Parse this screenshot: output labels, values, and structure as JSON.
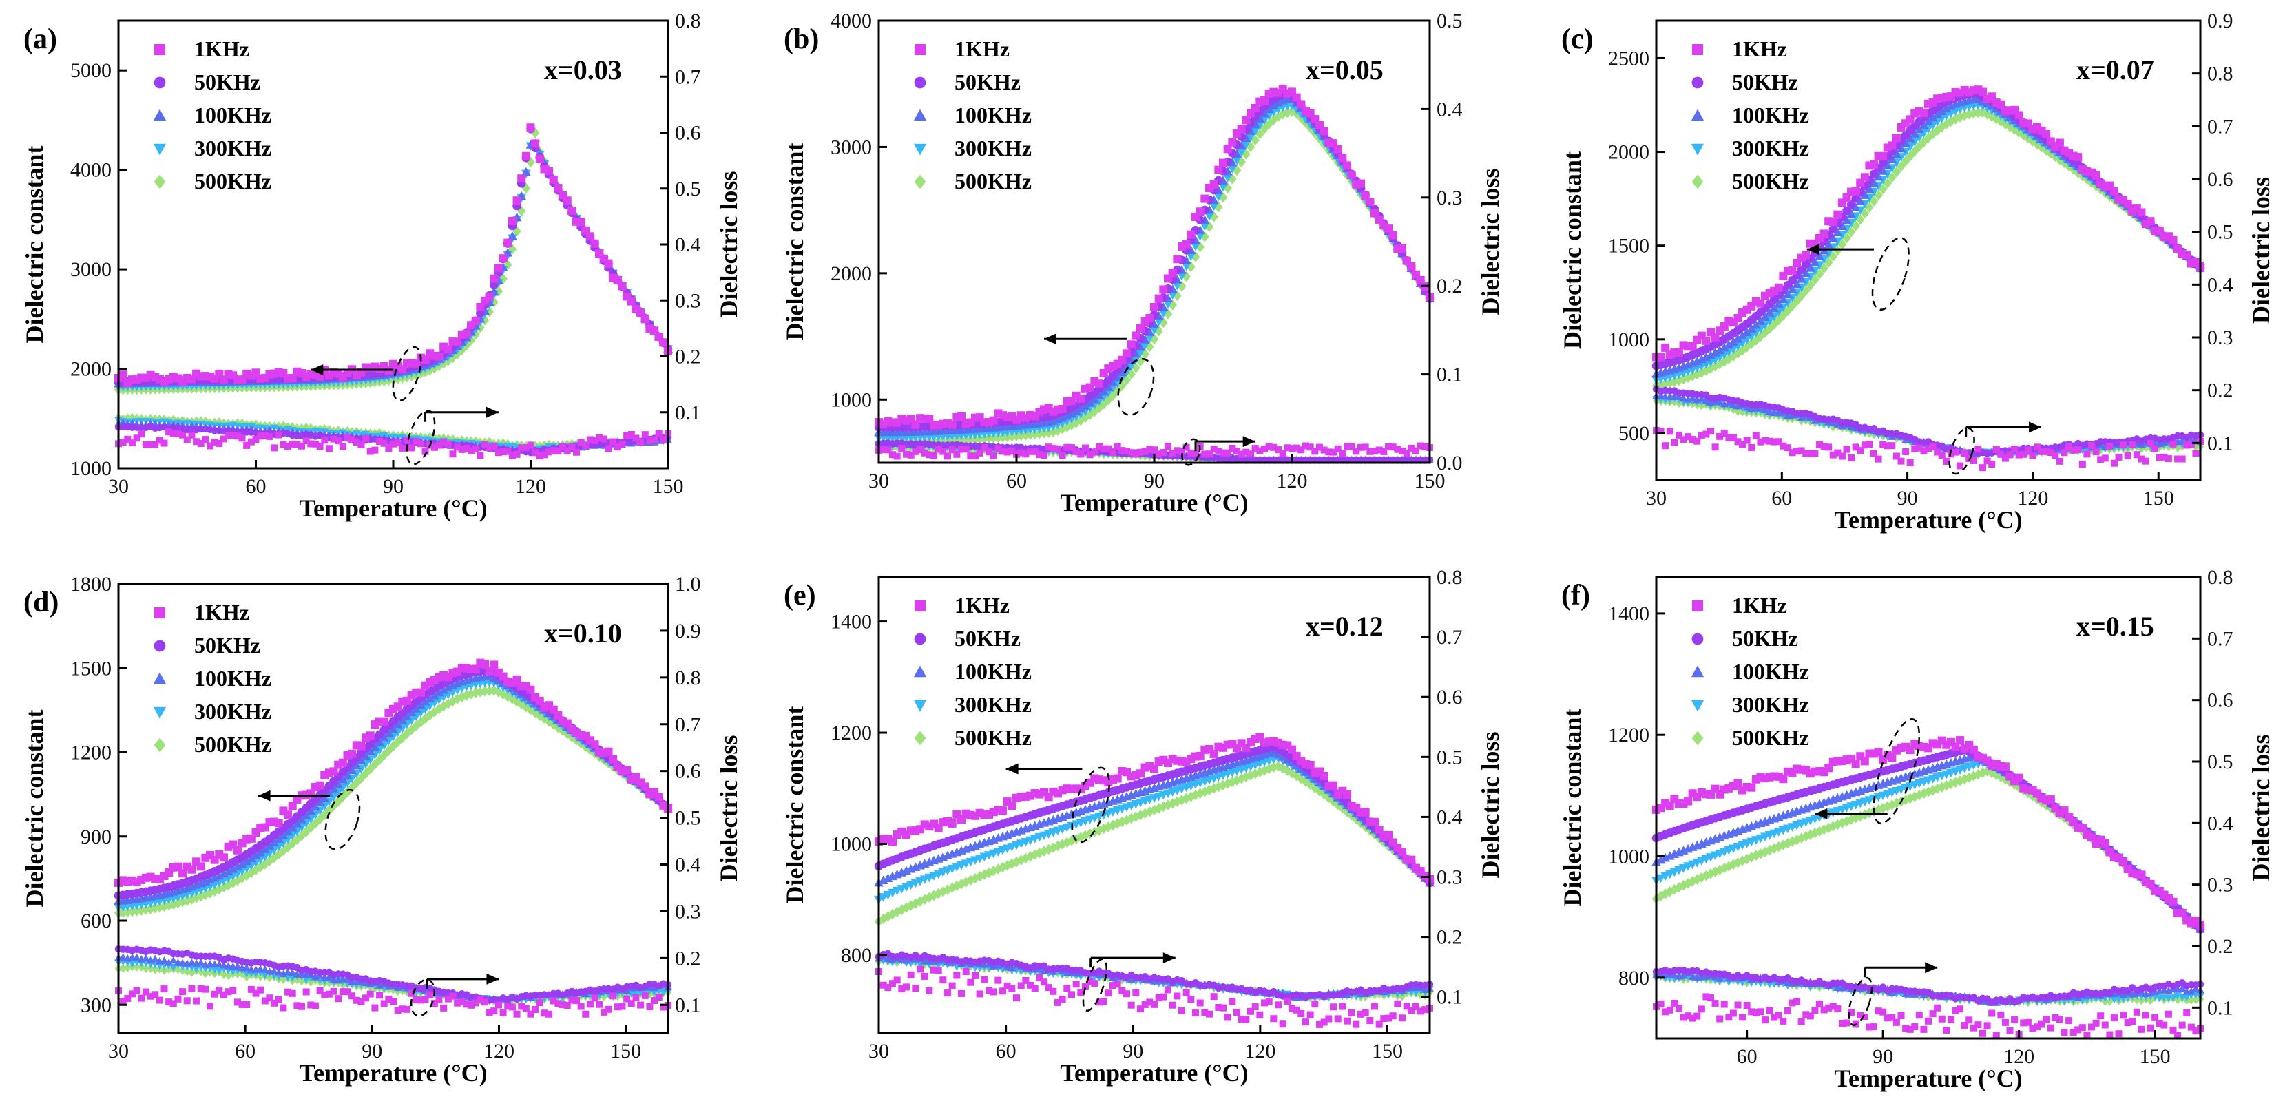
{
  "figure": {
    "x_axis_title": "Temperature (°C)",
    "left_axis_title": "Dielectric constant",
    "right_axis_title": "Dielectric loss",
    "legend": [
      {
        "name": "1KHz",
        "marker": "square",
        "color": "#dc3ff0"
      },
      {
        "name": "50KHz",
        "marker": "circle",
        "color": "#9a3cf0"
      },
      {
        "name": "100KHz",
        "marker": "triangle-up",
        "color": "#5a6ef0"
      },
      {
        "name": "300KHz",
        "marker": "triangle-down",
        "color": "#35b8f5"
      },
      {
        "name": "500KHz",
        "marker": "diamond",
        "color": "#9ee07a"
      }
    ]
  },
  "chart_data": [
    {
      "id": "a",
      "panel_label": "(a)",
      "annotation": "x=0.03",
      "type": "scatter",
      "xlabel": "Temperature (°C)",
      "ylabel": "Dielectric constant",
      "y2label": "Dielectric loss",
      "xlim": [
        30,
        150
      ],
      "xticks": [
        30,
        60,
        90,
        120,
        150
      ],
      "ylim": [
        1000,
        5500
      ],
      "yticks": [
        1000,
        2000,
        3000,
        4000,
        5000
      ],
      "y2lim": [
        0,
        0.8
      ],
      "y2ticks": [
        0.1,
        0.2,
        0.3,
        0.4,
        0.5,
        0.6,
        0.7,
        0.8
      ],
      "y2ticklabels": [
        "0.1",
        "0.2",
        "0.3",
        "0.4",
        "0.5",
        "0.6",
        "0.7",
        "0.8"
      ],
      "constant": {
        "peak_T": [
          120,
          120,
          120.5,
          120.5,
          121
        ],
        "peak_value": [
          4350,
          4340,
          4330,
          4320,
          4300
        ],
        "base_value": [
          1900,
          1870,
          1850,
          1820,
          1790
        ],
        "rise": [
          0.0015,
          0.0015,
          0.0015,
          0.0014,
          0.0014
        ],
        "width_left": 8,
        "width_right": 14,
        "shape": "sharp",
        "end_value": 2200
      },
      "loss": {
        "start": [
          0.055,
          0.075,
          0.08,
          0.085,
          0.09
        ],
        "min_T": [
          120,
          120,
          120,
          120,
          120
        ],
        "min_value": [
          0.03,
          0.03,
          0.03,
          0.035,
          0.04
        ],
        "end": [
          0.06,
          0.055,
          0.05,
          0.05,
          0.05
        ],
        "noise": 0.012
      },
      "guide_arrows": [
        {
          "axis": "left",
          "x_from": 90,
          "x_to": 72,
          "y": 1990
        },
        {
          "axis": "right",
          "x_from": 97,
          "x_to": 113,
          "y2": 0.1
        }
      ],
      "ellipses": [
        {
          "axis": "left",
          "x": 93,
          "y": 1950,
          "rx_t": 2.5,
          "ry": 280
        },
        {
          "axis": "right",
          "x": 96,
          "y2": 0.055,
          "rx_t": 2.5,
          "ry2": 0.05
        }
      ]
    },
    {
      "id": "b",
      "panel_label": "(b)",
      "annotation": "x=0.05",
      "type": "scatter",
      "xlabel": "Temperature (°C)",
      "ylabel": "Dielectric constant",
      "y2label": "Dielectric loss",
      "xlim": [
        30,
        150
      ],
      "xticks": [
        30,
        60,
        90,
        120,
        150
      ],
      "ylim": [
        500,
        4000
      ],
      "yticks": [
        1000,
        2000,
        3000,
        4000
      ],
      "y2lim": [
        0,
        0.5
      ],
      "y2ticks": [
        0.0,
        0.1,
        0.2,
        0.3,
        0.4,
        0.5
      ],
      "y2ticklabels": [
        "0.0",
        "0.1",
        "0.2",
        "0.3",
        "0.4",
        "0.5"
      ],
      "constant": {
        "peak_T": [
          119,
          119.5,
          120,
          120,
          120.5
        ],
        "peak_value": [
          3450,
          3420,
          3380,
          3330,
          3280
        ],
        "base_value": [
          820,
          780,
          740,
          700,
          660
        ],
        "rise": [
          0.012,
          0.011,
          0.011,
          0.01,
          0.01
        ],
        "width_left": 20,
        "width_right": 25,
        "shape": "broad",
        "end_value": 1800
      },
      "loss": {
        "start": [
          0.012,
          0.022,
          0.022,
          0.02,
          0.018
        ],
        "min_T": [
          120,
          122,
          122,
          122,
          122
        ],
        "min_value": [
          0.015,
          0.0,
          0.0,
          0.0,
          0.0
        ],
        "end": [
          0.015,
          0.0,
          0.0,
          0.0,
          0.0
        ],
        "noise": 0.005
      },
      "guide_arrows": [
        {
          "axis": "left",
          "x_from": 84,
          "x_to": 66,
          "y": 1480
        },
        {
          "axis": "right",
          "x_from": 99,
          "x_to": 112,
          "y2": 0.024
        }
      ],
      "ellipses": [
        {
          "axis": "left",
          "x": 86,
          "y": 1100,
          "rx_t": 3.5,
          "ry": 230
        },
        {
          "axis": "right",
          "x": 98,
          "y2": 0.012,
          "rx_t": 1.8,
          "ry2": 0.015
        }
      ]
    },
    {
      "id": "c",
      "panel_label": "(c)",
      "annotation": "x=0.07",
      "type": "scatter",
      "xlabel": "Temperature (°C)",
      "ylabel": "Dielectric constant",
      "y2label": "Dielectric loss",
      "xlim": [
        30,
        160
      ],
      "xticks": [
        30,
        60,
        90,
        120,
        150
      ],
      "ylim": [
        250,
        2700
      ],
      "yticks": [
        500,
        1000,
        1500,
        2000,
        2500
      ],
      "y2lim": [
        0.03,
        0.9
      ],
      "y2ticks": [
        0.1,
        0.2,
        0.3,
        0.4,
        0.5,
        0.6,
        0.7,
        0.8,
        0.9
      ],
      "y2ticklabels": [
        "0.1",
        "0.2",
        "0.3",
        "0.4",
        "0.5",
        "0.6",
        "0.7",
        "0.8",
        "0.9"
      ],
      "constant": {
        "peak_T": [
          106,
          106.5,
          107,
          107.5,
          108
        ],
        "peak_value": [
          2340,
          2310,
          2280,
          2250,
          2210
        ],
        "base_value": [
          860,
          800,
          760,
          730,
          700
        ],
        "rise": [
          0.006,
          0.006,
          0.006,
          0.006,
          0.006
        ],
        "width_left": 30,
        "width_right": 50,
        "shape": "broad",
        "end_value": 1380
      },
      "loss": {
        "start": [
          0.11,
          0.2,
          0.19,
          0.185,
          0.18
        ],
        "min_T": [
          105,
          105,
          105,
          105,
          105
        ],
        "min_value": [
          0.07,
          0.08,
          0.08,
          0.08,
          0.08
        ],
        "end": [
          0.085,
          0.115,
          0.105,
          0.1,
          0.095
        ],
        "noise": 0.018
      },
      "guide_arrows": [
        {
          "axis": "left",
          "x_from": 82,
          "x_to": 66,
          "y": 1480
        },
        {
          "axis": "right",
          "x_from": 104,
          "x_to": 122,
          "y2": 0.13
        }
      ],
      "ellipses": [
        {
          "axis": "left",
          "x": 86,
          "y": 1350,
          "rx_t": 3.5,
          "ry": 200
        },
        {
          "axis": "right",
          "x": 103,
          "y2": 0.085,
          "rx_t": 2.5,
          "ry2": 0.045
        }
      ]
    },
    {
      "id": "d",
      "panel_label": "(d)",
      "annotation": "x=0.10",
      "type": "scatter",
      "xlabel": "Temperature (°C)",
      "ylabel": "Dielectric constant",
      "y2label": "Dielectric loss",
      "xlim": [
        30,
        160
      ],
      "xticks": [
        30,
        60,
        90,
        120,
        150
      ],
      "ylim": [
        200,
        1800
      ],
      "yticks": [
        300,
        600,
        900,
        1200,
        1500,
        1800
      ],
      "y2lim": [
        0.04,
        1.0
      ],
      "y2ticks": [
        0.1,
        0.2,
        0.3,
        0.4,
        0.5,
        0.6,
        0.7,
        0.8,
        0.9,
        1.0
      ],
      "y2ticklabels": [
        "0.1",
        "0.2",
        "0.3",
        "0.4",
        "0.5",
        "0.6",
        "0.7",
        "0.8",
        "0.9",
        "1.0"
      ],
      "constant": {
        "peak_T": [
          117,
          117.5,
          118,
          118.5,
          119
        ],
        "peak_value": [
          1510,
          1490,
          1470,
          1450,
          1420
        ],
        "base_value": [
          720,
          670,
          650,
          630,
          610
        ],
        "rise": [
          0.0025,
          0.0025,
          0.0025,
          0.0025,
          0.0025
        ],
        "width_left": 32,
        "width_right": 40,
        "shape": "broad",
        "end_value": 1000
      },
      "loss": {
        "start": [
          0.12,
          0.22,
          0.2,
          0.19,
          0.18
        ],
        "min_T": [
          118,
          118,
          118,
          118,
          118
        ],
        "min_value": [
          0.1,
          0.11,
          0.11,
          0.11,
          0.11
        ],
        "end": [
          0.1,
          0.145,
          0.14,
          0.13,
          0.125
        ],
        "noise": 0.02
      },
      "guide_arrows": [
        {
          "axis": "left",
          "x_from": 80,
          "x_to": 63,
          "y": 1045
        },
        {
          "axis": "right",
          "x_from": 103,
          "x_to": 120,
          "y2": 0.155
        }
      ],
      "ellipses": [
        {
          "axis": "left",
          "x": 83,
          "y": 960,
          "rx_t": 3.5,
          "ry": 110
        },
        {
          "axis": "right",
          "x": 102,
          "y2": 0.115,
          "rx_t": 2.5,
          "ry2": 0.04
        }
      ]
    },
    {
      "id": "e",
      "panel_label": "(e)",
      "annotation": "x=0.12",
      "type": "scatter",
      "xlabel": "Temperature (°C)",
      "ylabel": "Dielectric constant",
      "y2label": "Dielectric loss",
      "xlim": [
        30,
        160
      ],
      "xticks": [
        30,
        60,
        90,
        120,
        150
      ],
      "ylim": [
        660,
        1480
      ],
      "yticks": [
        800,
        1000,
        1200,
        1400
      ],
      "y2lim": [
        0.04,
        0.8
      ],
      "y2ticks": [
        0.1,
        0.2,
        0.3,
        0.4,
        0.5,
        0.6,
        0.7,
        0.8
      ],
      "y2ticklabels": [
        "0.1",
        "0.2",
        "0.3",
        "0.4",
        "0.5",
        "0.6",
        "0.7",
        "0.8"
      ],
      "constant": {
        "peak_T": [
          122,
          123,
          123,
          124,
          124
        ],
        "peak_value": [
          1190,
          1175,
          1165,
          1155,
          1140
        ],
        "base_value": [
          1000,
          960,
          930,
          900,
          860
        ],
        "rise": [
          0.0,
          0.0,
          0.0,
          0.0,
          0.0
        ],
        "width_left": 0,
        "width_right": 30,
        "shape": "ramp",
        "end_value": 930
      },
      "loss": {
        "start": [
          0.13,
          0.17,
          0.165,
          0.16,
          0.16
        ],
        "min_T": [
          130,
          130,
          130,
          130,
          130
        ],
        "min_value": [
          0.07,
          0.1,
          0.1,
          0.1,
          0.1
        ],
        "end": [
          0.075,
          0.12,
          0.115,
          0.11,
          0.105
        ],
        "noise": 0.02
      },
      "guide_arrows": [
        {
          "axis": "left",
          "x_from": 78,
          "x_to": 60,
          "y": 1135
        },
        {
          "axis": "right",
          "x_from": 80,
          "x_to": 100,
          "y2": 0.165
        }
      ],
      "ellipses": [
        {
          "axis": "left",
          "x": 80,
          "y": 1070,
          "rx_t": 3.5,
          "ry": 70
        },
        {
          "axis": "right",
          "x": 81,
          "y2": 0.12,
          "rx_t": 2.0,
          "ry2": 0.045
        }
      ]
    },
    {
      "id": "f",
      "panel_label": "(f)",
      "annotation": "x=0.15",
      "type": "scatter",
      "xlabel": "Temperature (°C)",
      "ylabel": "Dielectric constant",
      "y2label": "Dielectric loss",
      "xlim": [
        40,
        160
      ],
      "xticks": [
        60,
        90,
        120,
        150
      ],
      "ylim": [
        700,
        1460
      ],
      "yticks": [
        800,
        1000,
        1200,
        1400
      ],
      "y2lim": [
        0.05,
        0.8
      ],
      "y2ticks": [
        0.1,
        0.2,
        0.3,
        0.4,
        0.5,
        0.6,
        0.7,
        0.8
      ],
      "y2ticklabels": [
        "0.1",
        "0.2",
        "0.3",
        "0.4",
        "0.5",
        "0.6",
        "0.7",
        "0.8"
      ],
      "constant": {
        "peak_T": [
          105,
          108,
          110,
          112,
          113
        ],
        "peak_value": [
          1190,
          1175,
          1165,
          1155,
          1140
        ],
        "base_value": [
          1080,
          1030,
          990,
          960,
          930
        ],
        "rise": [
          0.0,
          0.0,
          0.0,
          0.0,
          0.0
        ],
        "width_left": 0,
        "width_right": 40,
        "shape": "ramp",
        "end_value": 880
      },
      "loss": {
        "start": [
          0.1,
          0.16,
          0.155,
          0.15,
          0.15
        ],
        "min_T": [
          115,
          115,
          115,
          115,
          115
        ],
        "min_value": [
          0.075,
          0.11,
          0.11,
          0.11,
          0.11
        ],
        "end": [
          0.075,
          0.14,
          0.13,
          0.12,
          0.115
        ],
        "noise": 0.02
      },
      "guide_arrows": [
        {
          "axis": "left",
          "x_from": 91,
          "x_to": 75,
          "y": 1070
        },
        {
          "axis": "right",
          "x_from": 86,
          "x_to": 102,
          "y2": 0.165
        }
      ],
      "ellipses": [
        {
          "axis": "left",
          "x": 93,
          "y": 1140,
          "rx_t": 3.5,
          "ry": 90
        },
        {
          "axis": "right",
          "x": 85,
          "y2": 0.11,
          "rx_t": 2.0,
          "ry2": 0.04
        }
      ]
    }
  ]
}
